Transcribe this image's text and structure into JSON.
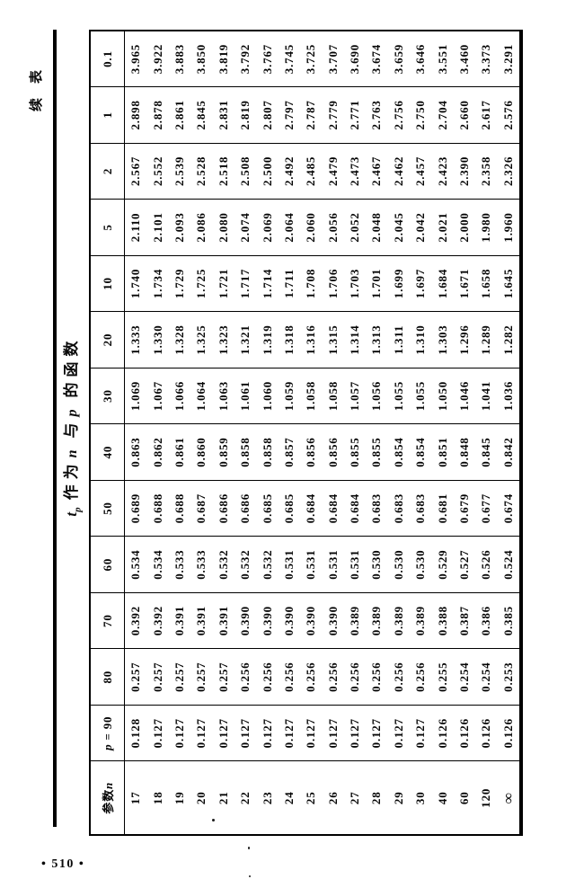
{
  "page": {
    "number": "• 510 •",
    "continued_label": "续表"
  },
  "table": {
    "title": {
      "symbol": "t",
      "symbol_sub": "p",
      "seg1": "作为",
      "var1": "n",
      "seg2": "与",
      "var2": "p",
      "seg3": "的函数"
    },
    "corner": {
      "label": "参数",
      "var": "n"
    },
    "col_headers": [
      "p = 90",
      "80",
      "70",
      "60",
      "50",
      "40",
      "30",
      "20",
      "10",
      "5",
      "2",
      "1",
      "0.1"
    ],
    "rows": [
      {
        "n": "17",
        "values": [
          "0.128",
          "0.257",
          "0.392",
          "0.534",
          "0.689",
          "0.863",
          "1.069",
          "1.333",
          "1.740",
          "2.110",
          "2.567",
          "2.898",
          "3.965"
        ]
      },
      {
        "n": "18",
        "values": [
          "0.127",
          "0.257",
          "0.392",
          "0.534",
          "0.688",
          "0.862",
          "1.067",
          "1.330",
          "1.734",
          "2.101",
          "2.552",
          "2.878",
          "3.922"
        ]
      },
      {
        "n": "19",
        "values": [
          "0.127",
          "0.257",
          "0.391",
          "0.533",
          "0.688",
          "0.861",
          "1.066",
          "1.328",
          "1.729",
          "2.093",
          "2.539",
          "2.861",
          "3.883"
        ]
      },
      {
        "n": "20",
        "values": [
          "0.127",
          "0.257",
          "0.391",
          "0.533",
          "0.687",
          "0.860",
          "1.064",
          "1.325",
          "1.725",
          "2.086",
          "2.528",
          "2.845",
          "3.850"
        ]
      },
      {
        "n": "21",
        "values": [
          "0.127",
          "0.257",
          "0.391",
          "0.532",
          "0.686",
          "0.859",
          "1.063",
          "1.323",
          "1.721",
          "2.080",
          "2.518",
          "2.831",
          "3.819"
        ]
      },
      {
        "n": "22",
        "values": [
          "0.127",
          "0.256",
          "0.390",
          "0.532",
          "0.686",
          "0.858",
          "1.061",
          "1.321",
          "1.717",
          "2.074",
          "2.508",
          "2.819",
          "3.792"
        ]
      },
      {
        "n": "23",
        "values": [
          "0.127",
          "0.256",
          "0.390",
          "0.532",
          "0.685",
          "0.858",
          "1.060",
          "1.319",
          "1.714",
          "2.069",
          "2.500",
          "2.807",
          "3.767"
        ]
      },
      {
        "n": "24",
        "values": [
          "0.127",
          "0.256",
          "0.390",
          "0.531",
          "0.685",
          "0.857",
          "1.059",
          "1.318",
          "1.711",
          "2.064",
          "2.492",
          "2.797",
          "3.745"
        ]
      },
      {
        "n": "25",
        "values": [
          "0.127",
          "0.256",
          "0.390",
          "0.531",
          "0.684",
          "0.856",
          "1.058",
          "1.316",
          "1.708",
          "2.060",
          "2.485",
          "2.787",
          "3.725"
        ]
      },
      {
        "n": "26",
        "values": [
          "0.127",
          "0.256",
          "0.390",
          "0.531",
          "0.684",
          "0.856",
          "1.058",
          "1.315",
          "1.706",
          "2.056",
          "2.479",
          "2.779",
          "3.707"
        ]
      },
      {
        "n": "27",
        "values": [
          "0.127",
          "0.256",
          "0.389",
          "0.531",
          "0.684",
          "0.855",
          "1.057",
          "1.314",
          "1.703",
          "2.052",
          "2.473",
          "2.771",
          "3.690"
        ]
      },
      {
        "n": "28",
        "values": [
          "0.127",
          "0.256",
          "0.389",
          "0.530",
          "0.683",
          "0.855",
          "1.056",
          "1.313",
          "1.701",
          "2.048",
          "2.467",
          "2.763",
          "3.674"
        ]
      },
      {
        "n": "29",
        "values": [
          "0.127",
          "0.256",
          "0.389",
          "0.530",
          "0.683",
          "0.854",
          "1.055",
          "1.311",
          "1.699",
          "2.045",
          "2.462",
          "2.756",
          "3.659"
        ]
      },
      {
        "n": "30",
        "values": [
          "0.127",
          "0.256",
          "0.389",
          "0.530",
          "0.683",
          "0.854",
          "1.055",
          "1.310",
          "1.697",
          "2.042",
          "2.457",
          "2.750",
          "3.646"
        ]
      },
      {
        "n": "40",
        "values": [
          "0.126",
          "0.255",
          "0.388",
          "0.529",
          "0.681",
          "0.851",
          "1.050",
          "1.303",
          "1.684",
          "2.021",
          "2.423",
          "2.704",
          "3.551"
        ]
      },
      {
        "n": "60",
        "values": [
          "0.126",
          "0.254",
          "0.387",
          "0.527",
          "0.679",
          "0.848",
          "1.046",
          "1.296",
          "1.671",
          "2.000",
          "2.390",
          "2.660",
          "3.460"
        ]
      },
      {
        "n": "120",
        "values": [
          "0.126",
          "0.254",
          "0.386",
          "0.526",
          "0.677",
          "0.845",
          "1.041",
          "1.289",
          "1.658",
          "1.980",
          "2.358",
          "2.617",
          "3.373"
        ]
      },
      {
        "n": "∞",
        "values": [
          "0.126",
          "0.253",
          "0.385",
          "0.524",
          "0.674",
          "0.842",
          "1.036",
          "1.282",
          "1.645",
          "1.960",
          "2.326",
          "2.576",
          "3.291"
        ]
      }
    ]
  }
}
